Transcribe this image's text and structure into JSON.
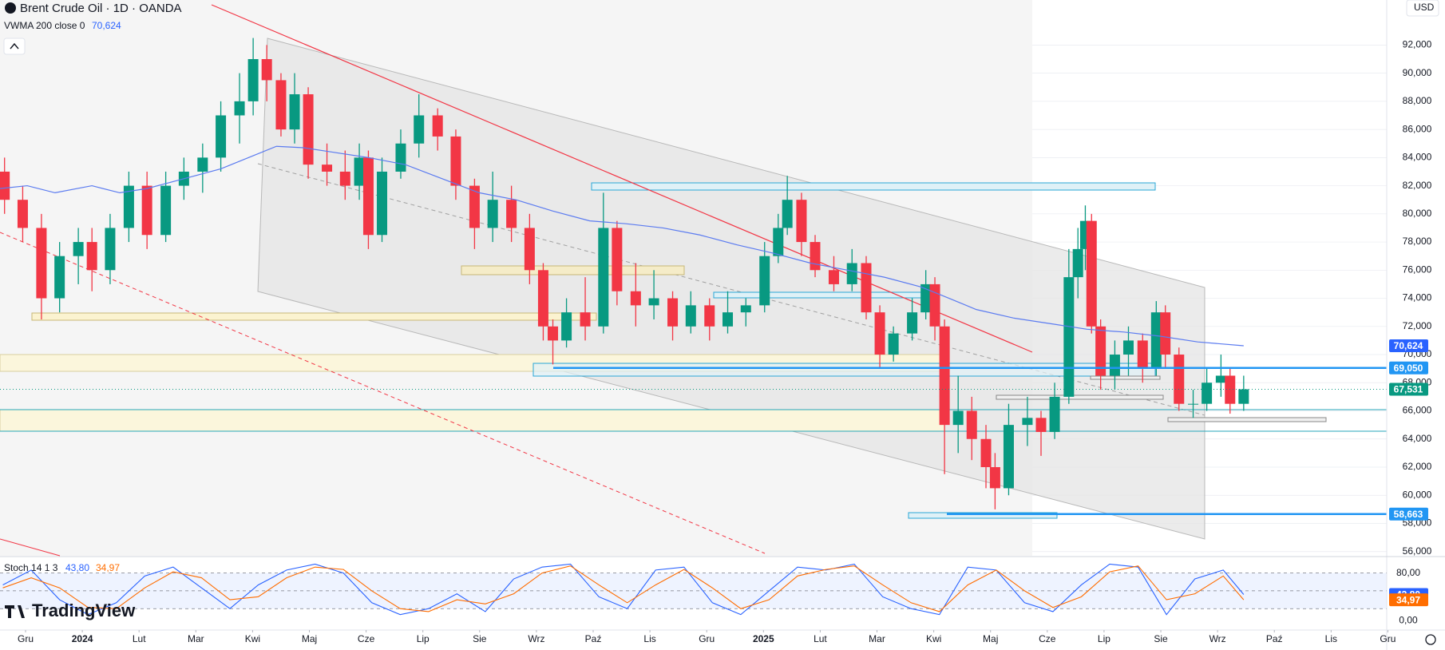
{
  "chart_data": {
    "type": "candlestick",
    "title": "Brent Crude Oil · 1D · OANDA",
    "currency": "USD",
    "watermark": "TradingView",
    "up_color": "#089981",
    "down_color": "#f23645",
    "x": [
      -0.37,
      -0.05,
      0.28,
      0.6,
      0.93,
      1.17,
      1.49,
      1.82,
      2.14,
      2.47,
      2.79,
      3.12,
      3.44,
      3.77,
      4.01,
      4.25,
      4.5,
      4.74,
      4.98,
      5.31,
      5.63,
      5.88,
      6.04,
      6.28,
      6.61,
      6.93,
      7.26,
      7.58,
      7.91,
      8.23,
      8.56,
      8.88,
      9.12,
      9.29,
      9.53,
      9.86,
      10.18,
      10.42,
      10.75,
      11.07,
      11.4,
      11.72,
      12.05,
      12.37,
      12.69,
      13.02,
      13.26,
      13.42,
      13.67,
      13.91,
      14.24,
      14.56,
      14.81,
      15.05,
      15.29,
      15.62,
      15.86,
      16.02,
      16.19,
      16.43,
      16.67,
      16.92,
      17.08,
      17.32,
      17.65,
      17.89,
      18.13,
      18.38,
      18.54,
      18.67,
      18.78,
      18.94,
      19.19,
      19.43,
      19.68,
      19.92,
      20.08,
      20.32,
      20.57,
      20.81,
      21.06,
      21.22,
      21.46
    ],
    "open": [
      83000,
      81000,
      79000,
      74000,
      77000,
      78000,
      76000,
      79000,
      82000,
      78500,
      82000,
      83000,
      84000,
      87000,
      88000,
      91000,
      89500,
      86000,
      88500,
      83500,
      83000,
      82000,
      84000,
      78500,
      83000,
      85000,
      87000,
      85500,
      82000,
      79000,
      81000,
      79000,
      76000,
      72000,
      71000,
      73000,
      72000,
      79000,
      74500,
      73500,
      74000,
      72000,
      73500,
      72000,
      73000,
      73500,
      77000,
      79000,
      81000,
      78000,
      76000,
      75000,
      76500,
      73000,
      70000,
      71500,
      73000,
      75000,
      72000,
      65000,
      66000,
      64000,
      62000,
      60500,
      65000,
      65500,
      64500,
      67000,
      75500,
      77500,
      79500,
      72000,
      68500,
      70000,
      71000,
      69000,
      73000,
      70000,
      66500,
      66500,
      68000,
      68500,
      66500
    ],
    "high": [
      84000,
      82000,
      80000,
      78000,
      79000,
      79000,
      80000,
      83000,
      83000,
      83000,
      84000,
      85000,
      88000,
      90000,
      92500,
      92000,
      90000,
      90000,
      89000,
      85000,
      84500,
      85000,
      84500,
      84000,
      86000,
      88500,
      87500,
      86000,
      82500,
      83000,
      82000,
      80000,
      76500,
      72500,
      74000,
      75500,
      81500,
      79500,
      76500,
      76000,
      74500,
      74500,
      74000,
      74500,
      74000,
      78000,
      80000,
      82700,
      81500,
      78500,
      77000,
      77500,
      77000,
      73500,
      72000,
      74000,
      76000,
      75500,
      72500,
      68500,
      67000,
      65000,
      63000,
      66500,
      67000,
      66000,
      68000,
      77500,
      79000,
      80600,
      80000,
      72500,
      71000,
      72000,
      71500,
      73800,
      73500,
      70500,
      67500,
      69000,
      70000,
      69000,
      68500
    ],
    "low": [
      80000,
      78000,
      72500,
      73000,
      75000,
      74500,
      75000,
      78000,
      77500,
      78000,
      81000,
      81500,
      83000,
      85000,
      87000,
      88000,
      85500,
      85000,
      82500,
      82000,
      81000,
      81000,
      77500,
      78000,
      82500,
      84000,
      84500,
      81000,
      77500,
      78000,
      78000,
      75000,
      71000,
      69300,
      70500,
      71000,
      71500,
      73500,
      72000,
      72500,
      71000,
      71500,
      71000,
      71500,
      72000,
      73000,
      76500,
      78500,
      77000,
      75500,
      74500,
      74500,
      72500,
      69000,
      69500,
      71000,
      72500,
      71000,
      61500,
      63000,
      62500,
      60500,
      59000,
      60000,
      63500,
      62800,
      64000,
      66500,
      74000,
      76000,
      71500,
      67500,
      67500,
      68500,
      68000,
      68500,
      69000,
      66000,
      65500,
      66000,
      67000,
      65800,
      66000
    ],
    "close": [
      81000,
      79000,
      74000,
      77000,
      78000,
      76000,
      79000,
      82000,
      78500,
      82000,
      83000,
      84000,
      87000,
      88000,
      91000,
      89500,
      86000,
      88500,
      83500,
      83000,
      82000,
      84000,
      78500,
      83000,
      85000,
      87000,
      85500,
      82000,
      79000,
      81000,
      79000,
      76000,
      72000,
      71000,
      73000,
      72000,
      79000,
      74500,
      73500,
      74000,
      72000,
      73500,
      72000,
      73000,
      73500,
      77000,
      79000,
      81000,
      78000,
      76000,
      75000,
      76500,
      73000,
      70000,
      71500,
      73000,
      75000,
      72000,
      65000,
      66000,
      64000,
      62000,
      60500,
      65000,
      65500,
      64500,
      67000,
      75500,
      77500,
      79500,
      72000,
      68500,
      70000,
      71000,
      69000,
      73000,
      70000,
      66500,
      66500,
      68000,
      68500,
      66500,
      67531
    ],
    "xlim": [
      -0.45,
      23.98
    ],
    "xticks": [
      {
        "value": 0,
        "label": "Gru"
      },
      {
        "value": 1,
        "label": "2024"
      },
      {
        "value": 2,
        "label": "Lut"
      },
      {
        "value": 3,
        "label": "Mar"
      },
      {
        "value": 4,
        "label": "Kwi"
      },
      {
        "value": 5,
        "label": "Maj"
      },
      {
        "value": 6,
        "label": "Cze"
      },
      {
        "value": 7,
        "label": "Lip"
      },
      {
        "value": 8,
        "label": "Sie"
      },
      {
        "value": 9,
        "label": "Wrz"
      },
      {
        "value": 10,
        "label": "Paź"
      },
      {
        "value": 11,
        "label": "Lis"
      },
      {
        "value": 12,
        "label": "Gru"
      },
      {
        "value": 13,
        "label": "2025"
      },
      {
        "value": 14,
        "label": "Lut"
      },
      {
        "value": 15,
        "label": "Mar"
      },
      {
        "value": 16,
        "label": "Kwi"
      },
      {
        "value": 17,
        "label": "Maj"
      },
      {
        "value": 18,
        "label": "Cze"
      },
      {
        "value": 19,
        "label": "Lip"
      },
      {
        "value": 20,
        "label": "Sie"
      },
      {
        "value": 21,
        "label": "Wrz"
      },
      {
        "value": 22,
        "label": "Paź"
      },
      {
        "value": 23,
        "label": "Lis"
      },
      {
        "value": 24,
        "label": "Gru"
      }
    ],
    "ylim": [
      55700,
      95200
    ],
    "yticks": [
      {
        "value": 56000,
        "label": "56,000"
      },
      {
        "value": 58000,
        "label": "58,000"
      },
      {
        "value": 60000,
        "label": "60,000"
      },
      {
        "value": 62000,
        "label": "62,000"
      },
      {
        "value": 64000,
        "label": "64,000"
      },
      {
        "value": 66000,
        "label": "66,000"
      },
      {
        "value": 68000,
        "label": "68,000"
      },
      {
        "value": 70000,
        "label": "70,000"
      },
      {
        "value": 72000,
        "label": "72,000"
      },
      {
        "value": 74000,
        "label": "74,000"
      },
      {
        "value": 76000,
        "label": "76,000"
      },
      {
        "value": 78000,
        "label": "78,000"
      },
      {
        "value": 80000,
        "label": "80,000"
      },
      {
        "value": 82000,
        "label": "82,000"
      },
      {
        "value": 84000,
        "label": "84,000"
      },
      {
        "value": 86000,
        "label": "86,000"
      },
      {
        "value": 88000,
        "label": "88,000"
      },
      {
        "value": 90000,
        "label": "90,000"
      },
      {
        "value": 92000,
        "label": "92,000"
      }
    ],
    "grid": true,
    "last_price": {
      "value": 67531,
      "label": "67,531"
    },
    "levels": [
      {
        "value": 69050,
        "label": "69,050",
        "color": "#2196f3"
      },
      {
        "value": 58663,
        "label": "58,663",
        "color": "#2196f3"
      }
    ],
    "indicator": {
      "type": "line",
      "name": "VWMA 200 close 0",
      "color": "#5b7bf0",
      "x": [
        -0.45,
        0.03,
        0.52,
        1.17,
        1.66,
        2.14,
        2.79,
        3.44,
        3.93,
        4.42,
        4.9,
        5.39,
        6.04,
        6.69,
        7.34,
        7.99,
        8.64,
        9.29,
        9.94,
        10.58,
        11.23,
        11.88,
        12.53,
        13.18,
        13.83,
        14.48,
        15.13,
        15.78,
        16.27,
        16.75,
        17.4,
        18.05,
        18.7,
        19.35,
        20.0,
        20.65,
        21.46
      ],
      "values": [
        81800,
        82000,
        81500,
        82000,
        81500,
        81800,
        82500,
        83200,
        84000,
        84800,
        84700,
        84400,
        84000,
        83500,
        82500,
        81500,
        81000,
        80200,
        79500,
        79300,
        79000,
        78500,
        77800,
        77200,
        76500,
        76000,
        75500,
        74800,
        74000,
        73200,
        72600,
        72200,
        71800,
        71600,
        71300,
        70900,
        70624
      ],
      "last": {
        "value": 70624,
        "label": "70,624",
        "color": "#2962ff"
      }
    },
    "stoch": {
      "type": "line",
      "name": "Stoch 14 1 3",
      "ylim": [
        -16,
        105
      ],
      "yticks": [
        {
          "value": 80,
          "label": "80,00"
        },
        {
          "value": 0,
          "label": "0,00"
        }
      ],
      "bands": [
        80,
        50,
        20
      ],
      "x": [
        -0.4,
        0.1,
        0.6,
        1.1,
        1.6,
        2.1,
        2.6,
        3.1,
        3.6,
        4.1,
        4.6,
        5.1,
        5.6,
        6.1,
        6.6,
        7.1,
        7.6,
        8.1,
        8.6,
        9.1,
        9.6,
        10.1,
        10.6,
        11.1,
        11.6,
        12.1,
        12.6,
        13.1,
        13.6,
        14.1,
        14.6,
        15.1,
        15.6,
        16.1,
        16.6,
        17.1,
        17.6,
        18.1,
        18.6,
        19.1,
        19.6,
        20.1,
        20.6,
        21.1,
        21.46
      ],
      "series": [
        {
          "color": "#2962ff",
          "values": [
            60,
            85,
            35,
            10,
            30,
            75,
            90,
            55,
            20,
            60,
            85,
            95,
            80,
            30,
            10,
            20,
            45,
            15,
            70,
            90,
            95,
            40,
            20,
            85,
            90,
            30,
            10,
            50,
            90,
            85,
            95,
            40,
            20,
            10,
            90,
            85,
            30,
            15,
            60,
            95,
            90,
            10,
            70,
            85,
            43.8
          ],
          "last": {
            "value": 43.8,
            "label": "43,80"
          }
        },
        {
          "color": "#ff6d00",
          "values": [
            55,
            72,
            55,
            22,
            20,
            55,
            82,
            72,
            35,
            40,
            72,
            90,
            86,
            50,
            20,
            15,
            35,
            28,
            45,
            80,
            92,
            60,
            30,
            60,
            86,
            55,
            20,
            35,
            75,
            86,
            92,
            60,
            30,
            15,
            60,
            85,
            50,
            22,
            40,
            82,
            92,
            35,
            45,
            75,
            34.97
          ],
          "last": {
            "value": 34.97,
            "label": "34,97"
          }
        }
      ]
    }
  }
}
